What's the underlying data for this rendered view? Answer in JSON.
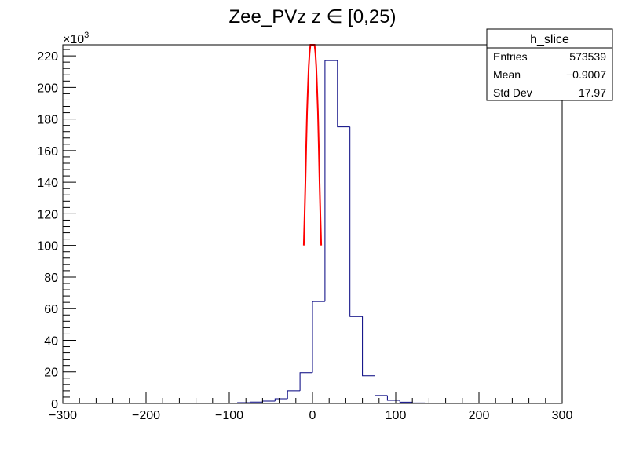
{
  "chart_data": {
    "type": "histogram",
    "title": "Zee_PVz z  ∈ [0,25)",
    "xlabel": "",
    "ylabel": "",
    "xlim": [
      -300,
      300
    ],
    "ylim": [
      0,
      227000
    ],
    "y_multiplier_label": "×10",
    "y_multiplier_exponent": "3",
    "x_ticks": [
      -300,
      -200,
      -100,
      0,
      100,
      200,
      300
    ],
    "x_tick_labels": [
      "−300",
      "−200",
      "−100",
      "0",
      "100",
      "200",
      "300"
    ],
    "y_ticks": [
      0,
      20000,
      40000,
      60000,
      80000,
      100000,
      120000,
      140000,
      160000,
      180000,
      200000,
      220000
    ],
    "y_tick_labels": [
      "0",
      "20",
      "40",
      "60",
      "80",
      "100",
      "120",
      "140",
      "160",
      "180",
      "200",
      "220"
    ],
    "grid": false,
    "series": [
      {
        "name": "h_slice",
        "style": "step",
        "color": "#00007f",
        "bin_edges": [
          -300,
          -285,
          -270,
          -255,
          -240,
          -225,
          -210,
          -195,
          -180,
          -165,
          -150,
          -135,
          -120,
          -105,
          -90,
          -75,
          -60,
          -45,
          -30,
          -15,
          0,
          15,
          30,
          45,
          60,
          75,
          90,
          105,
          120,
          135,
          150,
          165,
          180,
          195,
          210,
          225,
          240,
          255,
          270,
          285,
          300
        ],
        "values": [
          0,
          0,
          0,
          0,
          0,
          0,
          0,
          0,
          0,
          0,
          0,
          0,
          0,
          0,
          500,
          900,
          1500,
          3000,
          8000,
          19500,
          64500,
          217000,
          175000,
          55000,
          17500,
          5000,
          2000,
          800,
          300,
          100,
          0,
          0,
          0,
          0,
          0,
          0,
          0,
          0,
          0,
          0
        ]
      },
      {
        "name": "fit",
        "style": "line",
        "color": "#ff0000",
        "x": [
          -10.5,
          -9.5,
          -8.5,
          -7.5,
          -6.5,
          -5.5,
          -4.5,
          -3.5,
          -2.5,
          2.5,
          3.5,
          4.5,
          5.5,
          6.5,
          7.5,
          8.5,
          9.5,
          10.5
        ],
        "y": [
          100000,
          118000,
          140000,
          165000,
          185000,
          200000,
          213000,
          222000,
          227000,
          227000,
          222000,
          213000,
          200000,
          185000,
          165000,
          140000,
          118000,
          100000
        ]
      }
    ],
    "stats_box": {
      "title": "h_slice",
      "rows": [
        {
          "label": "Entries",
          "value": "573539"
        },
        {
          "label": "Mean",
          "value": "−0.9007"
        },
        {
          "label": "Std Dev",
          "value": "17.97"
        }
      ]
    }
  }
}
